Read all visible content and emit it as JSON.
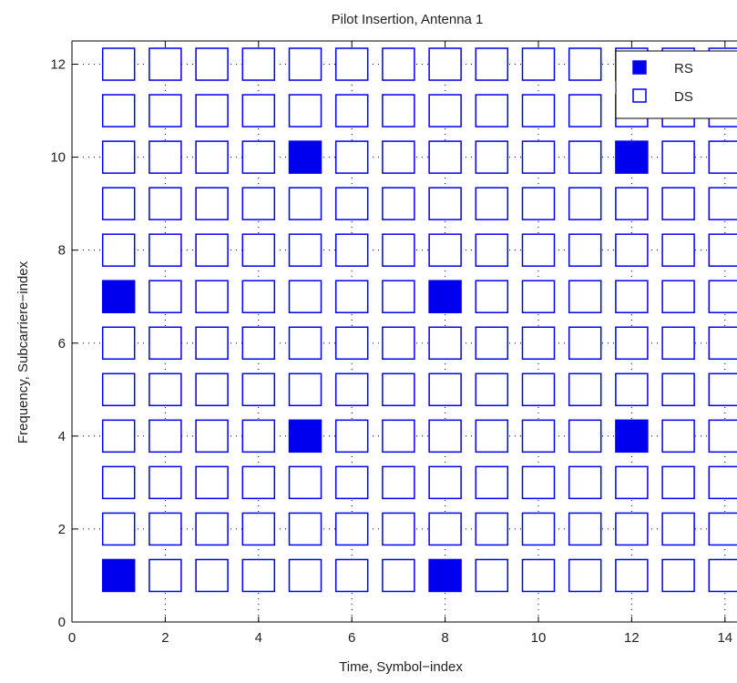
{
  "chart_data": {
    "type": "scatter",
    "title": "Pilot Insertion, Antenna 1",
    "xlabel": "Time, Symbol−index",
    "ylabel": "Frequency, Subcarriere−index",
    "xlim": [
      0,
      14
    ],
    "ylim": [
      0,
      12.5
    ],
    "xticks": [
      0,
      2,
      4,
      6,
      8,
      10,
      12,
      14
    ],
    "yticks": [
      0,
      2,
      4,
      6,
      8,
      10,
      12
    ],
    "grid": true,
    "legend_position": "top-right",
    "marker": "square",
    "colors": {
      "marker": "#0000ee",
      "axis": "#000000",
      "grid": "#000000"
    },
    "series": [
      {
        "name": "RS",
        "filled": true,
        "points": [
          [
            1,
            1
          ],
          [
            1,
            7
          ],
          [
            5,
            4
          ],
          [
            5,
            10
          ],
          [
            8,
            1
          ],
          [
            8,
            7
          ],
          [
            12,
            4
          ],
          [
            12,
            10
          ]
        ]
      },
      {
        "name": "DS",
        "filled": false,
        "x_range": [
          1,
          14
        ],
        "y_range": [
          1,
          12
        ],
        "excludes_rs": true
      }
    ]
  }
}
